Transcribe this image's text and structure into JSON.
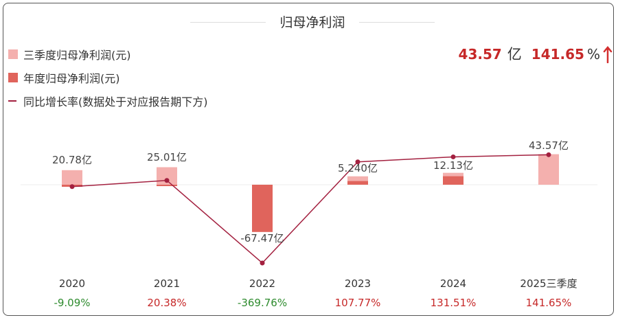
{
  "title": "归母净利润",
  "legend": [
    {
      "label": "三季度归母净利润(元)",
      "color": "#f4b0ae"
    },
    {
      "label": "年度归母净利润(元)",
      "color": "#e0645c"
    },
    {
      "label": "同比增长率(数据处于对应报告期下方)",
      "color": "#a3203f"
    }
  ],
  "summary": {
    "value": "43.57",
    "unit": "亿",
    "pct": "141.65",
    "pct_sign": "%"
  },
  "colors": {
    "up": "#c62828",
    "down": "#2e8b2e",
    "grid": "#eeeeee"
  },
  "chart_data": {
    "type": "bar",
    "title": "归母净利润",
    "categories": [
      "2020",
      "2021",
      "2022",
      "2023",
      "2024",
      "2025三季度"
    ],
    "series": [
      {
        "name": "三季度归母净利润(元)",
        "values": [
          20.78,
          25.01,
          -5.0,
          12.0,
          17.0,
          43.57
        ]
      },
      {
        "name": "年度归母净利润(元)",
        "values": [
          -3.0,
          -2.0,
          -67.47,
          5.24,
          12.13,
          null
        ]
      },
      {
        "name": "同比增长率(数据处于对应报告期下方)",
        "values": [
          -9.09,
          20.38,
          -369.76,
          107.77,
          131.51,
          141.65
        ]
      }
    ],
    "data_labels": [
      "20.78亿",
      "25.01亿",
      "-67.47亿",
      "5.240亿",
      "12.13亿",
      "43.57亿"
    ],
    "growth_labels": [
      "-9.09%",
      "20.38%",
      "-369.76%",
      "107.77%",
      "131.51%",
      "141.65%"
    ]
  }
}
